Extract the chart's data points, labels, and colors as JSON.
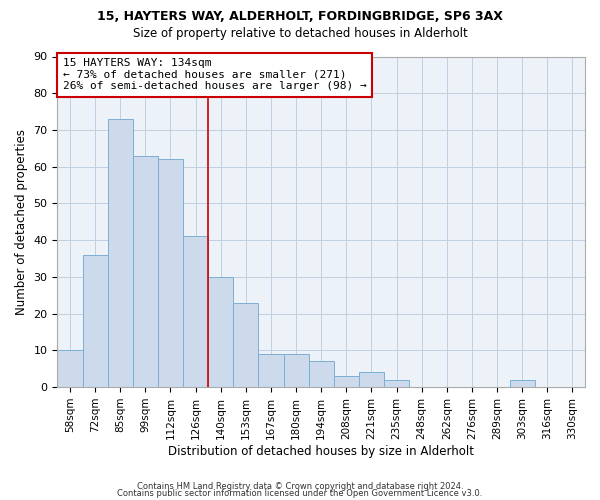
{
  "title1": "15, HAYTERS WAY, ALDERHOLT, FORDINGBRIDGE, SP6 3AX",
  "title2": "Size of property relative to detached houses in Alderholt",
  "xlabel": "Distribution of detached houses by size in Alderholt",
  "ylabel": "Number of detached properties",
  "bar_labels": [
    "58sqm",
    "72sqm",
    "85sqm",
    "99sqm",
    "112sqm",
    "126sqm",
    "140sqm",
    "153sqm",
    "167sqm",
    "180sqm",
    "194sqm",
    "208sqm",
    "221sqm",
    "235sqm",
    "248sqm",
    "262sqm",
    "276sqm",
    "289sqm",
    "303sqm",
    "316sqm",
    "330sqm"
  ],
  "bar_values": [
    10,
    36,
    73,
    63,
    62,
    41,
    30,
    23,
    9,
    9,
    7,
    3,
    4,
    2,
    0,
    0,
    0,
    0,
    2,
    0,
    0
  ],
  "bar_color": "#ccdaeb",
  "bar_edge_color": "#7bafd4",
  "annotation_line1": "15 HAYTERS WAY: 134sqm",
  "annotation_line2": "← 73% of detached houses are smaller (271)",
  "annotation_line3": "26% of semi-detached houses are larger (98) →",
  "vline_x": 5.5,
  "vline_color": "#cc0000",
  "annotation_box_color": "#ffffff",
  "annotation_box_edge_color": "#cc0000",
  "footer1": "Contains HM Land Registry data © Crown copyright and database right 2024.",
  "footer2": "Contains public sector information licensed under the Open Government Licence v3.0.",
  "ylim": [
    0,
    90
  ],
  "yticks": [
    0,
    10,
    20,
    30,
    40,
    50,
    60,
    70,
    80,
    90
  ],
  "grid_color": "#c0cfe0",
  "background_color": "#edf2f8"
}
